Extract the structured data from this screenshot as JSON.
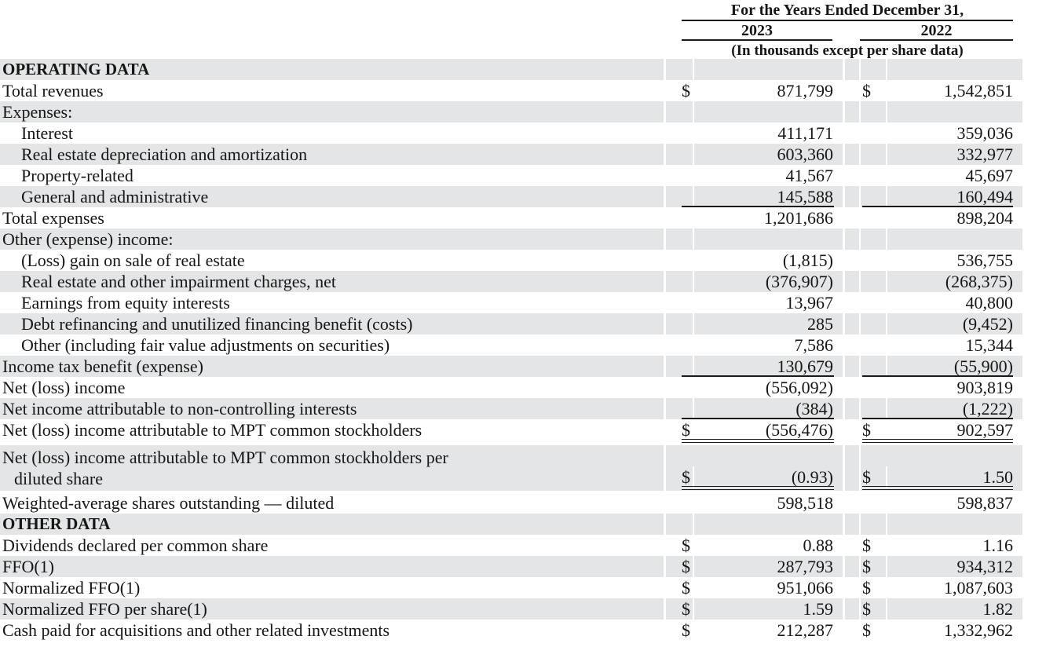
{
  "table": {
    "header": {
      "period_label": "For the Years Ended December 31,",
      "col_2023": "2023",
      "col_2022": "2022",
      "units_note": "(In thousands except per share data)"
    },
    "colors": {
      "row_shade": "#e4e5e6",
      "text": "#161616",
      "rule": "#1a1a1a",
      "background": "#ffffff"
    },
    "rows": [
      {
        "label": "OPERATING DATA",
        "section": true,
        "shaded": true,
        "d2023": "",
        "v2023": "",
        "d2022": "",
        "v2022": ""
      },
      {
        "label": "Total revenues",
        "shaded": false,
        "d2023": "$",
        "v2023": "871,799",
        "d2022": "$",
        "v2022": "1,542,851"
      },
      {
        "label": "Expenses:",
        "shaded": true,
        "d2023": "",
        "v2023": "",
        "d2022": "",
        "v2022": ""
      },
      {
        "label": "Interest",
        "indent": true,
        "shaded": false,
        "d2023": "",
        "v2023": "411,171",
        "d2022": "",
        "v2022": "359,036"
      },
      {
        "label": "Real estate depreciation and amortization",
        "indent": true,
        "shaded": true,
        "d2023": "",
        "v2023": "603,360",
        "d2022": "",
        "v2022": "332,977"
      },
      {
        "label": "Property-related",
        "indent": true,
        "shaded": false,
        "d2023": "",
        "v2023": "41,567",
        "d2022": "",
        "v2022": "45,697"
      },
      {
        "label": "General and administrative",
        "indent": true,
        "shaded": true,
        "rule": "single",
        "d2023": "",
        "v2023": "145,588",
        "d2022": "",
        "v2022": "160,494"
      },
      {
        "label": "Total expenses",
        "shaded": false,
        "d2023": "",
        "v2023": "1,201,686",
        "d2022": "",
        "v2022": "898,204"
      },
      {
        "label": "Other (expense) income:",
        "shaded": true,
        "d2023": "",
        "v2023": "",
        "d2022": "",
        "v2022": ""
      },
      {
        "label": "(Loss) gain on sale of real estate",
        "indent": true,
        "shaded": false,
        "d2023": "",
        "v2023": "(1,815)",
        "d2022": "",
        "v2022": "536,755"
      },
      {
        "label": "Real estate and other impairment charges, net",
        "indent": true,
        "shaded": true,
        "d2023": "",
        "v2023": "(376,907)",
        "d2022": "",
        "v2022": "(268,375)"
      },
      {
        "label": "Earnings from equity interests",
        "indent": true,
        "shaded": false,
        "d2023": "",
        "v2023": "13,967",
        "d2022": "",
        "v2022": "40,800"
      },
      {
        "label": "Debt refinancing and unutilized financing benefit (costs)",
        "indent": true,
        "shaded": true,
        "d2023": "",
        "v2023": "285",
        "d2022": "",
        "v2022": "(9,452)"
      },
      {
        "label": "Other (including fair value adjustments on securities)",
        "indent": true,
        "shaded": false,
        "d2023": "",
        "v2023": "7,586",
        "d2022": "",
        "v2022": "15,344"
      },
      {
        "label": "Income tax benefit (expense)",
        "shaded": true,
        "rule": "single",
        "d2023": "",
        "v2023": "130,679",
        "d2022": "",
        "v2022": "(55,900)"
      },
      {
        "label": "Net (loss) income",
        "shaded": false,
        "d2023": "",
        "v2023": "(556,092)",
        "d2022": "",
        "v2022": "903,819"
      },
      {
        "label": "Net income attributable to non-controlling interests",
        "shaded": true,
        "rule": "single",
        "d2023": "",
        "v2023": "(384)",
        "d2022": "",
        "v2022": "(1,222)"
      },
      {
        "label": "Net (loss) income attributable to MPT common stockholders",
        "shaded": false,
        "rule": "double",
        "d2023": "$",
        "v2023": "(556,476)",
        "d2022": "$",
        "v2022": "902,597"
      },
      {
        "label": "Net (loss) income attributable to MPT common stockholders per",
        "label2": "diluted share",
        "shaded": true,
        "rule": "double",
        "d2023": "$",
        "v2023": "(0.93)",
        "d2022": "$",
        "v2022": "1.50"
      },
      {
        "label": "Weighted-average shares outstanding — diluted",
        "shaded": false,
        "d2023": "",
        "v2023": "598,518",
        "d2022": "",
        "v2022": "598,837"
      },
      {
        "label": "OTHER DATA",
        "section": true,
        "shaded": true,
        "d2023": "",
        "v2023": "",
        "d2022": "",
        "v2022": ""
      },
      {
        "label": "Dividends declared per common share",
        "shaded": false,
        "d2023": "$",
        "v2023": "0.88",
        "d2022": "$",
        "v2022": "1.16"
      },
      {
        "label": "FFO(1)",
        "shaded": true,
        "d2023": "$",
        "v2023": "287,793",
        "d2022": "$",
        "v2022": "934,312"
      },
      {
        "label": "Normalized FFO(1)",
        "shaded": false,
        "d2023": "$",
        "v2023": "951,066",
        "d2022": "$",
        "v2022": "1,087,603"
      },
      {
        "label": "Normalized FFO per share(1)",
        "shaded": true,
        "d2023": "$",
        "v2023": "1.59",
        "d2022": "$",
        "v2022": "1.82"
      },
      {
        "label": "Cash paid for acquisitions and other related investments",
        "shaded": false,
        "d2023": "$",
        "v2023": "212,287",
        "d2022": "$",
        "v2022": "1,332,962"
      }
    ]
  }
}
